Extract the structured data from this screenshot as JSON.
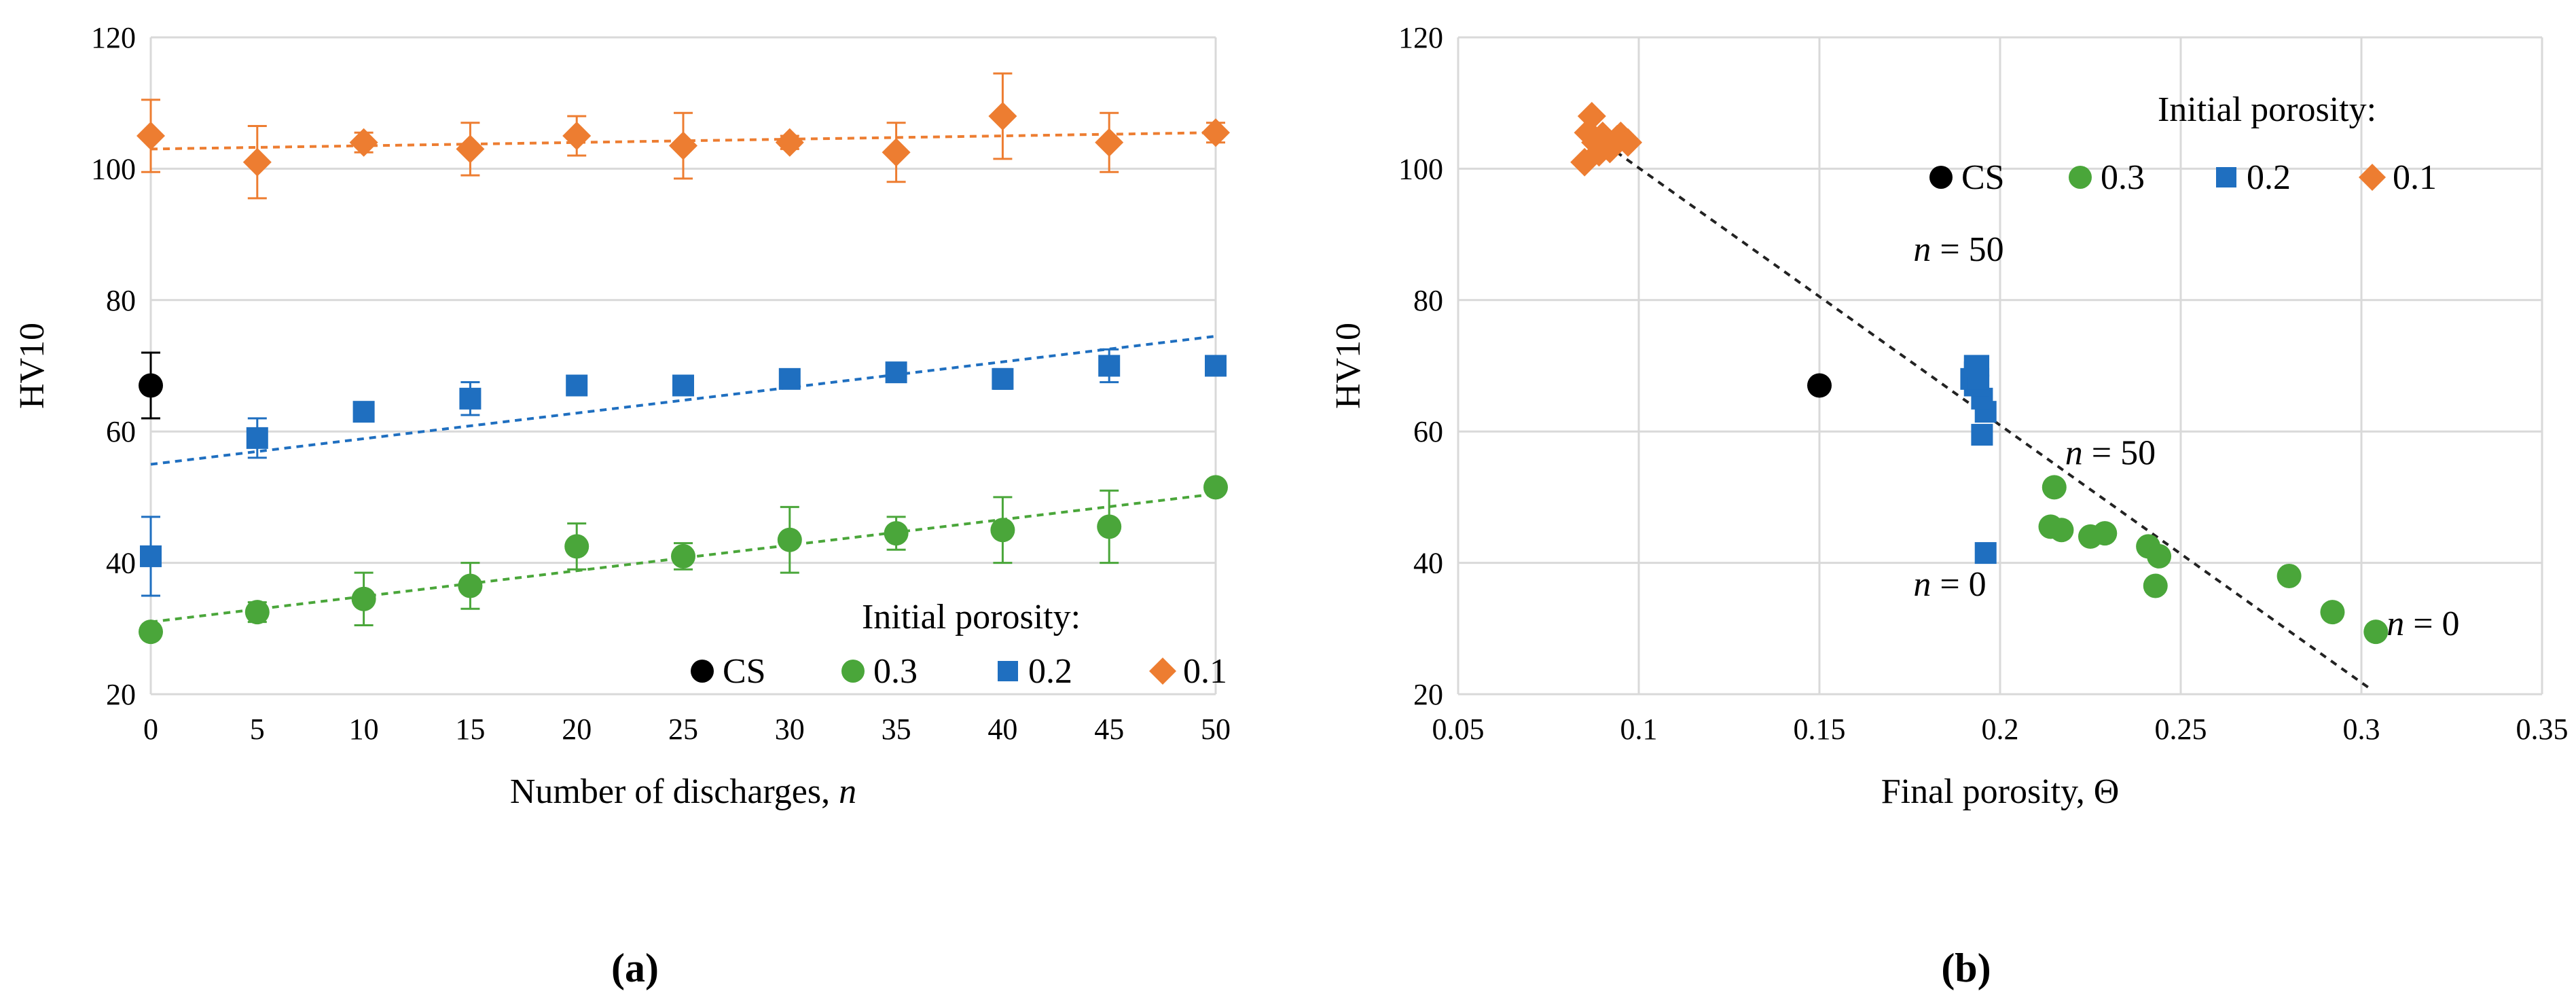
{
  "chart_data": [
    {
      "panel": "(a)",
      "type": "scatter",
      "xlabel": "Number of discharges, ",
      "xlabel_italic": "n",
      "ylabel": "HV10",
      "xlim": [
        0,
        50
      ],
      "ylim": [
        20,
        120
      ],
      "xticks": [
        0,
        5,
        10,
        15,
        20,
        25,
        30,
        35,
        40,
        45,
        50
      ],
      "yticks": [
        20,
        40,
        60,
        80,
        100,
        120
      ],
      "grid": true,
      "legend_title": "Initial porosity:",
      "legend_position": "bottom-right",
      "series": [
        {
          "name": "CS",
          "marker": "circle",
          "color": "#000000",
          "points": [
            {
              "x": 0,
              "y": 67,
              "err": 5
            }
          ]
        },
        {
          "name": "0.3",
          "marker": "circle",
          "color": "#4aa63a",
          "trend": [
            31,
            50.5
          ],
          "points": [
            {
              "x": 0,
              "y": 29.5,
              "err": 0
            },
            {
              "x": 5,
              "y": 32.5,
              "err": 1.5
            },
            {
              "x": 10,
              "y": 34.5,
              "err": 4
            },
            {
              "x": 15,
              "y": 36.5,
              "err": 3.5
            },
            {
              "x": 20,
              "y": 42.5,
              "err": 3.5
            },
            {
              "x": 25,
              "y": 41,
              "err": 2
            },
            {
              "x": 30,
              "y": 43.5,
              "err": 5
            },
            {
              "x": 35,
              "y": 44.5,
              "err": 2.5
            },
            {
              "x": 40,
              "y": 45,
              "err": 5
            },
            {
              "x": 45,
              "y": 45.5,
              "err": 5.5
            },
            {
              "x": 50,
              "y": 51.5,
              "err": 0
            }
          ]
        },
        {
          "name": "0.2",
          "marker": "square",
          "color": "#1f6fc0",
          "trend": [
            55,
            74.5
          ],
          "points": [
            {
              "x": 0,
              "y": 41,
              "err": 6
            },
            {
              "x": 5,
              "y": 59,
              "err": 3
            },
            {
              "x": 10,
              "y": 63,
              "err": 1
            },
            {
              "x": 15,
              "y": 65,
              "err": 2.5
            },
            {
              "x": 20,
              "y": 67,
              "err": 1
            },
            {
              "x": 25,
              "y": 67,
              "err": 1.5
            },
            {
              "x": 30,
              "y": 68,
              "err": 1
            },
            {
              "x": 35,
              "y": 69,
              "err": 0.5
            },
            {
              "x": 40,
              "y": 68,
              "err": 1.5
            },
            {
              "x": 45,
              "y": 70,
              "err": 2.5
            },
            {
              "x": 50,
              "y": 70,
              "err": 0
            }
          ]
        },
        {
          "name": "0.1",
          "marker": "diamond",
          "color": "#ed7d31",
          "trend": [
            103,
            105.5
          ],
          "points": [
            {
              "x": 0,
              "y": 105,
              "err": 5.5
            },
            {
              "x": 5,
              "y": 101,
              "err": 5.5
            },
            {
              "x": 10,
              "y": 104,
              "err": 1.5
            },
            {
              "x": 15,
              "y": 103,
              "err": 4
            },
            {
              "x": 20,
              "y": 105,
              "err": 3
            },
            {
              "x": 25,
              "y": 103.5,
              "err": 5
            },
            {
              "x": 30,
              "y": 104,
              "err": 1
            },
            {
              "x": 35,
              "y": 102.5,
              "err": 4.5
            },
            {
              "x": 40,
              "y": 108,
              "err": 6.5
            },
            {
              "x": 45,
              "y": 104,
              "err": 4.5
            },
            {
              "x": 50,
              "y": 105.5,
              "err": 1.5
            }
          ]
        }
      ]
    },
    {
      "panel": "(b)",
      "type": "scatter",
      "xlabel": "Final porosity, Θ",
      "ylabel": "HV10",
      "xlim": [
        0.05,
        0.35
      ],
      "ylim": [
        20,
        120
      ],
      "xticks": [
        0.05,
        0.1,
        0.15,
        0.2,
        0.25,
        0.3,
        0.35
      ],
      "xtick_labels": [
        "0.05",
        "0.1",
        "0.15",
        "0.2",
        "0.25",
        "0.3",
        "0.35"
      ],
      "yticks": [
        20,
        40,
        60,
        80,
        100,
        120
      ],
      "grid": true,
      "legend_title": "Initial porosity:",
      "legend_position": "top-right",
      "trendline": [
        {
          "x": 0.085,
          "y": 106
        },
        {
          "x": 0.302,
          "y": 21
        }
      ],
      "annotations": [
        {
          "text": "= 50",
          "italic": "n",
          "x": 0.176,
          "y": 86
        },
        {
          "text": "= 50",
          "italic": "n",
          "x": 0.218,
          "y": 55
        },
        {
          "text": "= 0",
          "italic": "n",
          "x": 0.176,
          "y": 35
        },
        {
          "text": "= 0",
          "italic": "n",
          "x": 0.307,
          "y": 29
        }
      ],
      "series": [
        {
          "name": "CS",
          "marker": "circle",
          "color": "#000000",
          "points": [
            {
              "x": 0.15,
              "y": 67
            }
          ]
        },
        {
          "name": "0.3",
          "marker": "circle",
          "color": "#4aa63a",
          "points": [
            {
              "x": 0.304,
              "y": 29.5
            },
            {
              "x": 0.292,
              "y": 32.5
            },
            {
              "x": 0.28,
              "y": 38
            },
            {
              "x": 0.243,
              "y": 36.5
            },
            {
              "x": 0.241,
              "y": 42.5
            },
            {
              "x": 0.244,
              "y": 41
            },
            {
              "x": 0.229,
              "y": 44.5
            },
            {
              "x": 0.225,
              "y": 44
            },
            {
              "x": 0.214,
              "y": 45.5
            },
            {
              "x": 0.217,
              "y": 45
            },
            {
              "x": 0.215,
              "y": 51.5
            }
          ]
        },
        {
          "name": "0.2",
          "marker": "square",
          "color": "#1f6fc0",
          "points": [
            {
              "x": 0.196,
              "y": 41.5
            },
            {
              "x": 0.195,
              "y": 59.5
            },
            {
              "x": 0.196,
              "y": 63
            },
            {
              "x": 0.195,
              "y": 65
            },
            {
              "x": 0.193,
              "y": 67
            },
            {
              "x": 0.194,
              "y": 67
            },
            {
              "x": 0.192,
              "y": 68
            },
            {
              "x": 0.193,
              "y": 69
            },
            {
              "x": 0.194,
              "y": 68
            },
            {
              "x": 0.194,
              "y": 70
            },
            {
              "x": 0.193,
              "y": 70
            }
          ]
        },
        {
          "name": "0.1",
          "marker": "diamond",
          "color": "#ed7d31",
          "points": [
            {
              "x": 0.085,
              "y": 101
            },
            {
              "x": 0.087,
              "y": 108
            },
            {
              "x": 0.088,
              "y": 104
            },
            {
              "x": 0.09,
              "y": 105
            },
            {
              "x": 0.092,
              "y": 103
            },
            {
              "x": 0.095,
              "y": 105
            },
            {
              "x": 0.097,
              "y": 104
            },
            {
              "x": 0.089,
              "y": 102.5
            },
            {
              "x": 0.091,
              "y": 103.5
            },
            {
              "x": 0.094,
              "y": 104.5
            },
            {
              "x": 0.086,
              "y": 105.5
            }
          ]
        }
      ]
    }
  ]
}
